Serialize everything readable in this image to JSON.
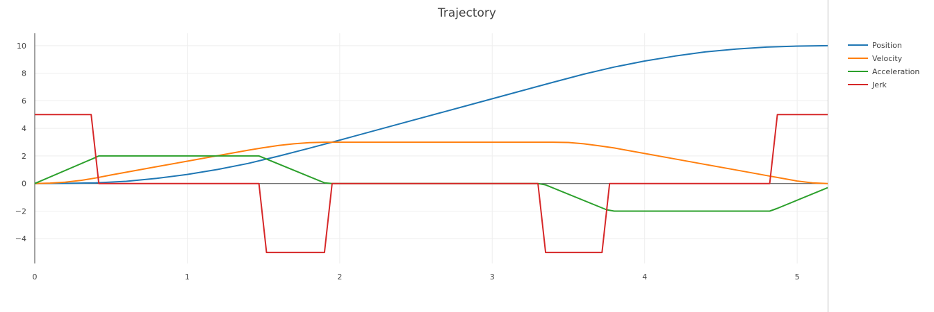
{
  "chart_data": {
    "type": "line",
    "title": "Trajectory",
    "xlabel": "",
    "ylabel": "",
    "xlim": [
      0,
      5.2
    ],
    "ylim": [
      -5.8,
      10.9
    ],
    "xticks": [
      0,
      1,
      2,
      3,
      4,
      5
    ],
    "xtick_labels": [
      "0",
      "1",
      "2",
      "3",
      "4",
      "5"
    ],
    "yticks": [
      10,
      8,
      6,
      4,
      2,
      0,
      -2,
      -4
    ],
    "ytick_labels": [
      "10",
      "8",
      "6",
      "4",
      "2",
      "0",
      "−2",
      "−4"
    ],
    "grid": true,
    "legend_position": "top-right",
    "series": [
      {
        "name": "Position",
        "color": "#1f77b4",
        "x": [
          0,
          0.2,
          0.4,
          0.6,
          0.8,
          1.0,
          1.2,
          1.4,
          1.6,
          1.8,
          2.0,
          2.4,
          2.8,
          3.2,
          3.4,
          3.6,
          3.8,
          4.0,
          4.2,
          4.4,
          4.6,
          4.8,
          5.0,
          5.2
        ],
        "values": [
          0,
          0.01,
          0.05,
          0.16,
          0.37,
          0.66,
          1.02,
          1.46,
          1.99,
          2.56,
          3.15,
          4.35,
          5.55,
          6.75,
          7.35,
          7.93,
          8.45,
          8.89,
          9.25,
          9.55,
          9.76,
          9.9,
          9.97,
          10.0
        ]
      },
      {
        "name": "Velocity",
        "color": "#ff7f0e",
        "x": [
          0,
          0.1,
          0.2,
          0.3,
          0.4,
          0.5,
          0.6,
          0.8,
          1.0,
          1.2,
          1.4,
          1.5,
          1.6,
          1.7,
          1.8,
          1.9,
          2.0,
          3.4,
          3.5,
          3.6,
          3.7,
          3.8,
          4.0,
          4.2,
          4.4,
          4.6,
          4.7,
          4.8,
          4.9,
          5.0,
          5.1,
          5.2
        ],
        "values": [
          0,
          0.03,
          0.1,
          0.22,
          0.4,
          0.62,
          0.82,
          1.22,
          1.62,
          2.02,
          2.42,
          2.6,
          2.76,
          2.88,
          2.96,
          3.0,
          3.0,
          3.0,
          2.98,
          2.88,
          2.74,
          2.58,
          2.18,
          1.78,
          1.38,
          0.98,
          0.78,
          0.58,
          0.38,
          0.18,
          0.05,
          0
        ]
      },
      {
        "name": "Acceleration",
        "color": "#2ca02c",
        "x": [
          0,
          0.38,
          0.42,
          1.47,
          1.9,
          1.95,
          3.3,
          3.35,
          3.75,
          3.8,
          4.82,
          4.87,
          5.2
        ],
        "values": [
          0,
          1.8,
          2.0,
          2.0,
          0.05,
          0,
          0,
          -0.1,
          -1.9,
          -2.0,
          -2.0,
          -1.8,
          -0.3
        ]
      },
      {
        "name": "Jerk",
        "color": "#d62728",
        "x": [
          0,
          0.37,
          0.42,
          1.47,
          1.52,
          1.9,
          1.95,
          3.3,
          3.35,
          3.72,
          3.77,
          4.82,
          4.87,
          5.2
        ],
        "values": [
          5,
          5,
          0,
          0,
          -5,
          -5,
          0,
          0,
          -5,
          -5,
          0,
          0,
          5,
          5
        ]
      }
    ]
  }
}
